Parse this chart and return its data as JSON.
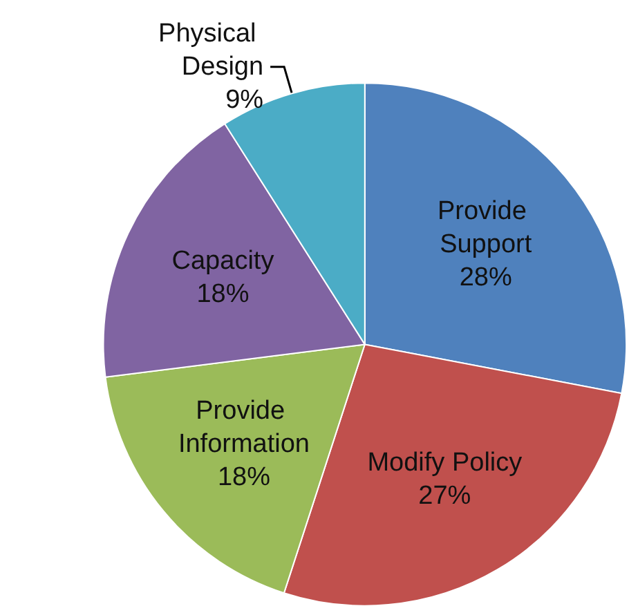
{
  "chart_data": {
    "type": "pie",
    "categories": [
      "Provide Support",
      "Modify Policy",
      "Provide Information",
      "Capacity",
      "Physical Design"
    ],
    "values": [
      28,
      27,
      18,
      18,
      9
    ],
    "colors": [
      "#4f81bd",
      "#c0504d",
      "#9bbb59",
      "#8064a2",
      "#4bacc6"
    ],
    "value_labels": [
      "28%",
      "27%",
      "18%",
      "18%",
      "9%"
    ],
    "legend": false
  }
}
